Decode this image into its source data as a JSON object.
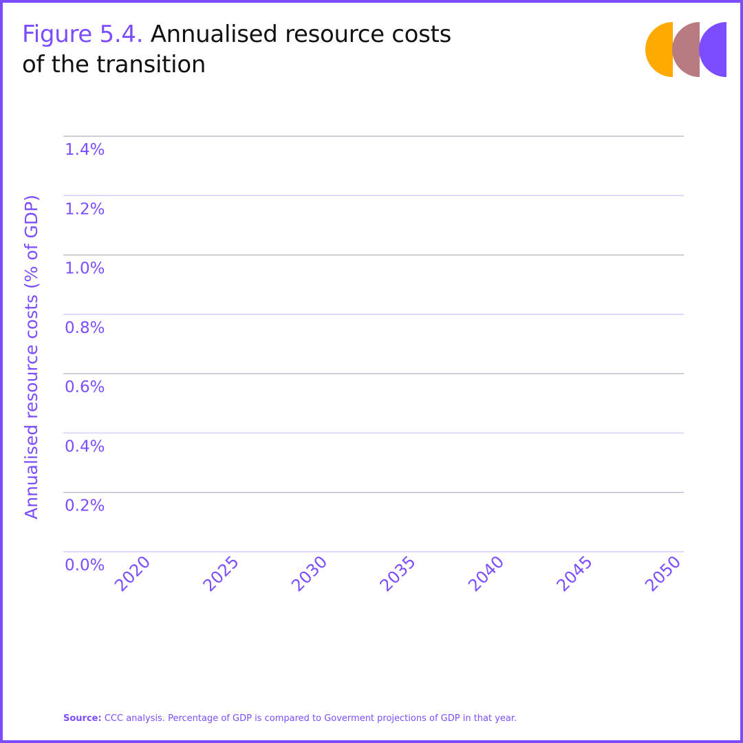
{
  "title": {
    "figure": "Figure 5.4.",
    "text": "Annualised resource costs of the transition"
  },
  "logo": {
    "name": "ccc-logo",
    "colors": [
      "#FFAA00",
      "#B87B80",
      "#7B4DFF"
    ]
  },
  "chart_data": {
    "type": "line",
    "title": "Annualised resource costs of the transition",
    "ylabel": "Annualised resource costs (% of GDP)",
    "xlabel": "",
    "ylim": [
      0,
      1.4
    ],
    "yticks": [
      {
        "value": 0.0,
        "label": "0.0%"
      },
      {
        "value": 0.2,
        "label": "0.2%"
      },
      {
        "value": 0.4,
        "label": "0.4%"
      },
      {
        "value": 0.6,
        "label": "0.6%"
      },
      {
        "value": 0.8,
        "label": "0.8%"
      },
      {
        "value": 1.0,
        "label": "1.0%"
      },
      {
        "value": 1.2,
        "label": "1.2%"
      },
      {
        "value": 1.4,
        "label": "1.4%"
      }
    ],
    "xlim": [
      2020,
      2050
    ],
    "xticks": [
      {
        "value": 2020,
        "label": "2020"
      },
      {
        "value": 2025,
        "label": "2025"
      },
      {
        "value": 2030,
        "label": "2030"
      },
      {
        "value": 2035,
        "label": "2035"
      },
      {
        "value": 2040,
        "label": "2040"
      },
      {
        "value": 2045,
        "label": "2045"
      },
      {
        "value": 2050,
        "label": "2050"
      }
    ],
    "grid": true,
    "series": []
  },
  "colors": {
    "accent": "#7B4DFF",
    "gridline_light": "#D3CCFF",
    "gridline_dark": "#BDBDC6"
  },
  "source": {
    "label": "Source:",
    "text": "CCC analysis. Percentage of GDP is compared to Goverment projections of GDP in that year."
  }
}
